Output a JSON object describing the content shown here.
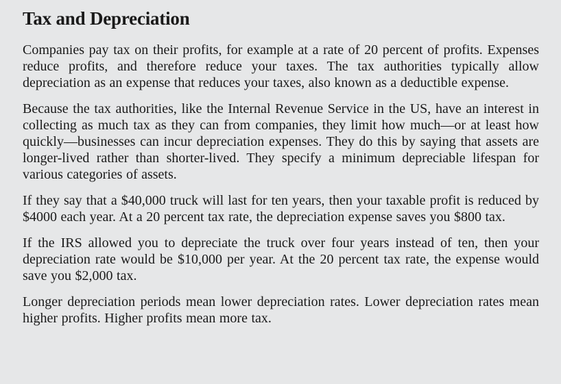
{
  "document": {
    "title": "Tax and Depreciation",
    "paragraphs": [
      "Companies pay tax on their profits, for example at a rate of 20 percent of profits. Expenses reduce profits, and therefore reduce your taxes. The tax authorities typically allow depreciation as an expense that reduces your taxes, also known as a deductible expense.",
      "Because the tax authorities, like the Internal Revenue Service in the US, have an interest in collecting as much tax as they can from companies, they limit how much—or at least how quickly—businesses can incur depreciation expenses. They do this by saying that assets are longer-lived rather than shorter-lived. They specify a minimum depreciable lifespan for various categories of assets.",
      "If they say that a $40,000 truck will last for ten years, then your taxable profit is reduced by $4000 each year. At a 20 percent tax rate, the depreciation expense saves you $800 tax.",
      "If the IRS allowed you to depreciate the truck over four years instead of ten, then your depreciation rate would be $10,000 per year. At the 20 percent tax rate, the expense would save you $2,000 tax.",
      "Longer depreciation periods mean lower depreciation rates. Lower depreciation rates mean higher profits. Higher profits mean more tax."
    ]
  }
}
